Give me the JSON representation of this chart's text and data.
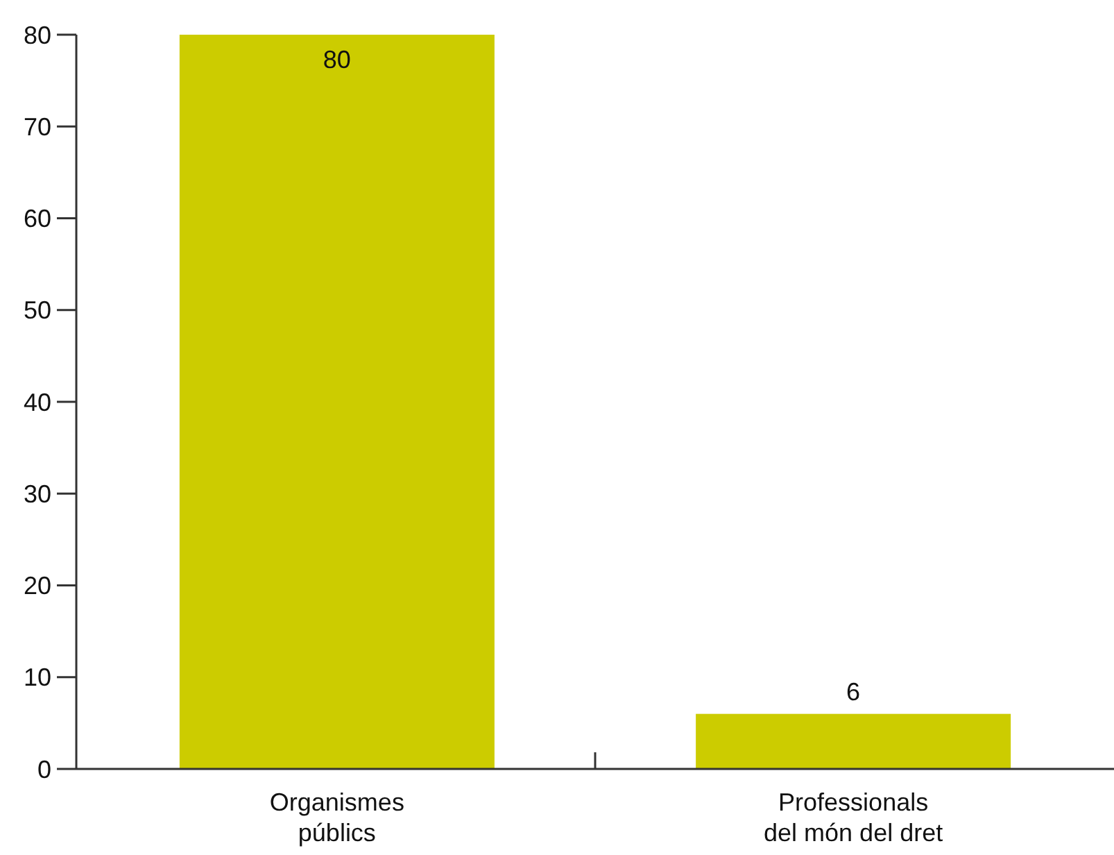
{
  "chart_data": {
    "type": "bar",
    "categories": [
      "Organismes públics",
      "Professionals del món del dret"
    ],
    "values": [
      80,
      6
    ],
    "color": "#cccc00",
    "ylim": [
      0,
      80
    ],
    "yticks": [
      0,
      10,
      20,
      30,
      40,
      50,
      60,
      70,
      80
    ],
    "data_labels": true
  }
}
